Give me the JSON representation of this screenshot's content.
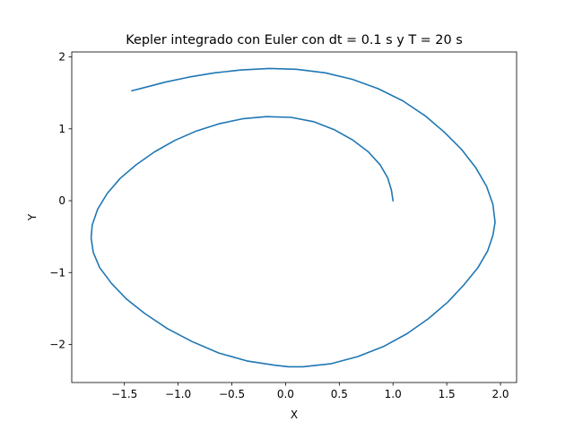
{
  "chart_data": {
    "type": "line",
    "title": "Kepler integrado con Euler con dt = 0.1 s y T = 20 s",
    "xlabel": "X",
    "ylabel": "Y",
    "xlim": [
      -1.99,
      2.15
    ],
    "ylim": [
      -2.53,
      2.07
    ],
    "xticks": [
      -1.5,
      -1.0,
      -0.5,
      0.0,
      0.5,
      1.0,
      1.5,
      2.0
    ],
    "xtick_labels": [
      "−1.5",
      "−1.0",
      "−0.5",
      "0.0",
      "0.5",
      "1.0",
      "1.5",
      "2.0"
    ],
    "yticks": [
      -2,
      -1,
      0,
      1,
      2
    ],
    "ytick_labels": [
      "−2",
      "−1",
      "0",
      "1",
      "2"
    ],
    "grid": false,
    "series": [
      {
        "color": "#1f77b4",
        "x": [
          1.0,
          0.985,
          0.95,
          0.88,
          0.77,
          0.62,
          0.45,
          0.26,
          0.05,
          -0.18,
          -0.4,
          -0.62,
          -0.83,
          -1.03,
          -1.22,
          -1.39,
          -1.54,
          -1.66,
          -1.75,
          -1.8,
          -1.81,
          -1.79,
          -1.73,
          -1.62,
          -1.48,
          -1.31,
          -1.1,
          -0.87,
          -0.62,
          -0.36,
          -0.1,
          0.03,
          0.16,
          0.42,
          0.67,
          0.91,
          1.13,
          1.33,
          1.51,
          1.66,
          1.79,
          1.88,
          1.93,
          1.95,
          1.93,
          1.87,
          1.77,
          1.64,
          1.48,
          1.3,
          1.09,
          0.86,
          0.62,
          0.37,
          0.1,
          -0.15,
          -0.41,
          -0.66,
          -0.9,
          -1.12,
          -1.3,
          -1.43
        ],
        "y": [
          0.0,
          0.15,
          0.32,
          0.5,
          0.68,
          0.85,
          0.99,
          1.1,
          1.16,
          1.17,
          1.14,
          1.07,
          0.97,
          0.84,
          0.68,
          0.5,
          0.31,
          0.1,
          -0.12,
          -0.34,
          -0.52,
          -0.72,
          -0.93,
          -1.15,
          -1.37,
          -1.57,
          -1.78,
          -1.96,
          -2.12,
          -2.23,
          -2.29,
          -2.31,
          -2.31,
          -2.27,
          -2.17,
          -2.03,
          -1.85,
          -1.64,
          -1.41,
          -1.17,
          -0.93,
          -0.7,
          -0.48,
          -0.3,
          -0.05,
          0.2,
          0.46,
          0.71,
          0.95,
          1.18,
          1.39,
          1.56,
          1.69,
          1.78,
          1.83,
          1.84,
          1.82,
          1.78,
          1.72,
          1.65,
          1.58,
          1.53
        ]
      }
    ]
  }
}
